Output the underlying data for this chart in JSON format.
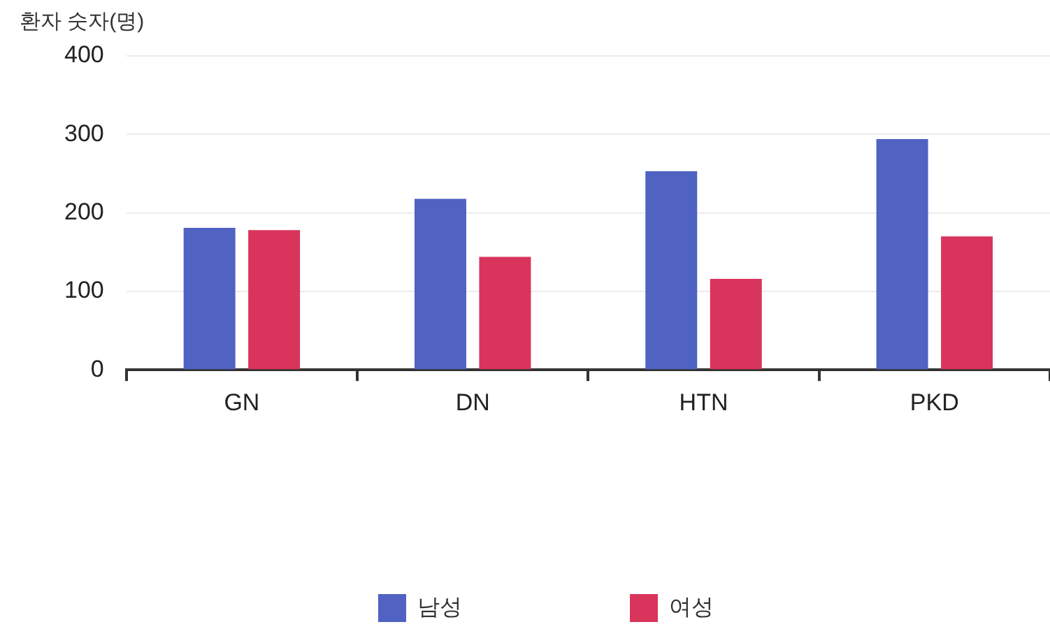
{
  "chart_data": {
    "type": "bar",
    "ylabel": "환자 숫자(명)",
    "categories": [
      "GN",
      "DN",
      "HTN",
      "PKD"
    ],
    "series": [
      {
        "name": "남성",
        "color": "#5062c2",
        "values": [
          181,
          218,
          253,
          294
        ]
      },
      {
        "name": "여성",
        "color": "#d9345c",
        "values": [
          178,
          144,
          116,
          170
        ]
      }
    ],
    "ylim": [
      0,
      400
    ],
    "yticks": [
      0,
      100,
      200,
      300,
      400
    ],
    "grid": "y",
    "legend": "bottom"
  }
}
